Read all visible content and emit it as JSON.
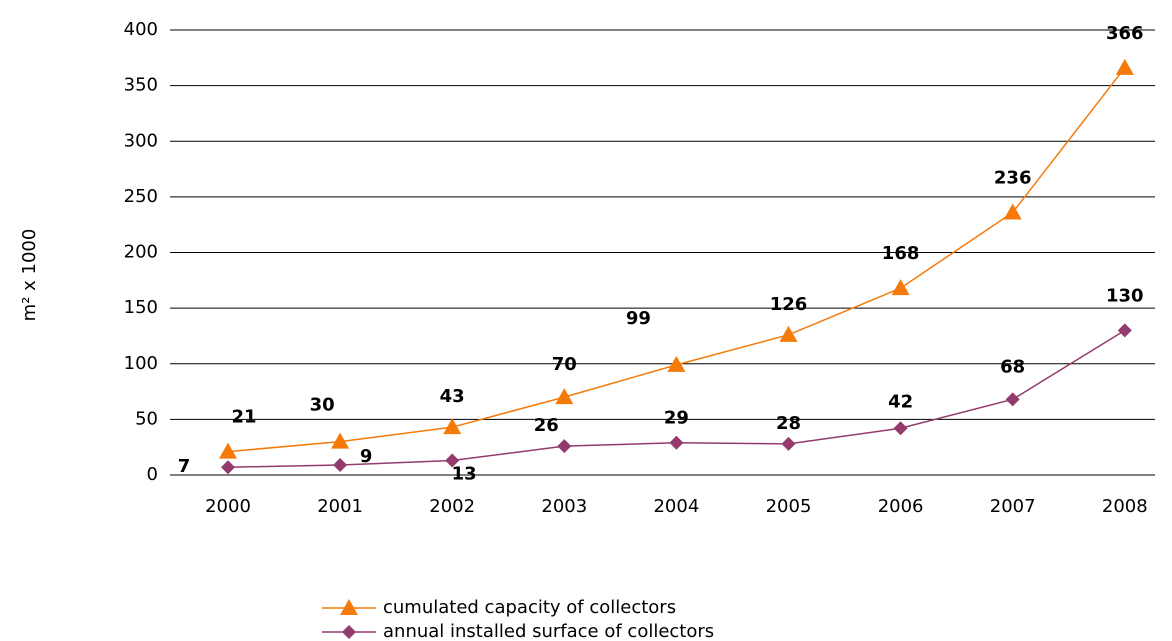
{
  "chart_data": {
    "type": "line",
    "y_label": "m² x 1000",
    "categories": [
      "2000",
      "2001",
      "2002",
      "2003",
      "2004",
      "2005",
      "2006",
      "2007",
      "2008"
    ],
    "series": [
      {
        "name": "cumulated capacity of collectors",
        "color": "#f57a0a",
        "marker": "triangle",
        "values": [
          21,
          30,
          43,
          70,
          99,
          126,
          168,
          236,
          366
        ]
      },
      {
        "name": "annual installed surface of collectors",
        "color": "#943b6e",
        "marker": "diamond",
        "values": [
          7,
          9,
          13,
          26,
          29,
          28,
          42,
          68,
          130
        ]
      }
    ],
    "ylim": [
      0,
      400
    ],
    "yticks": [
      0,
      50,
      100,
      150,
      200,
      250,
      300,
      350,
      400
    ],
    "grid": true,
    "legend": "bottom"
  }
}
